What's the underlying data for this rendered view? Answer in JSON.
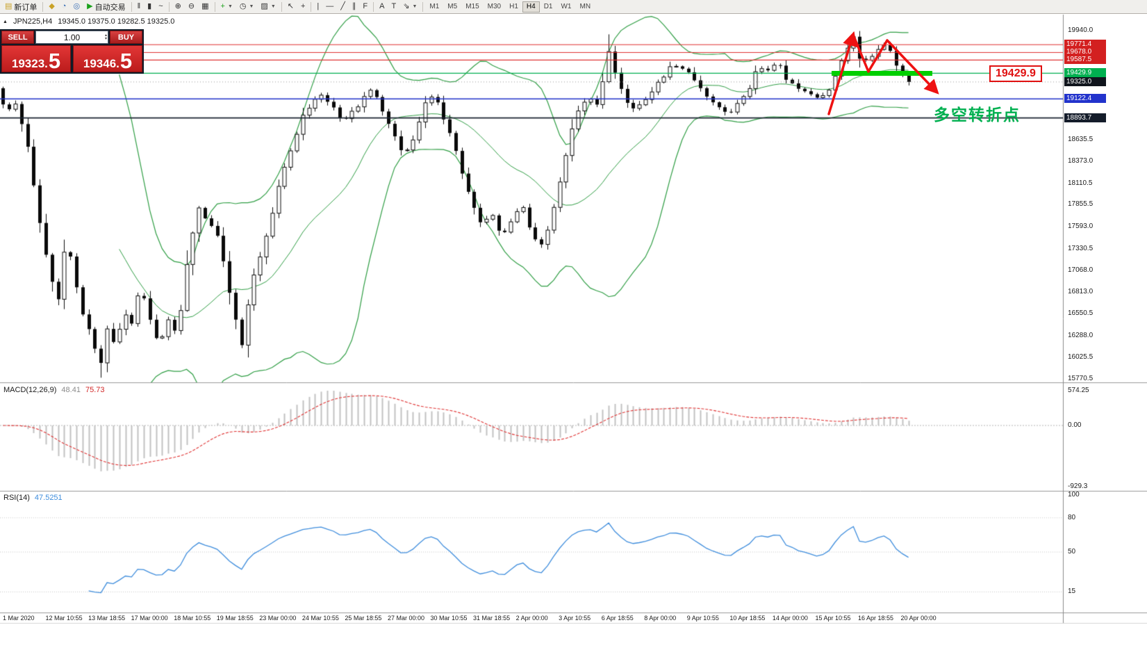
{
  "toolbar": {
    "buttons": [
      {
        "name": "new-order-button",
        "glyph": "▤",
        "color": "#c9a227",
        "label": "新订单"
      },
      {
        "sep": true
      },
      {
        "name": "styler-button",
        "glyph": "◆",
        "color": "#c9a227"
      },
      {
        "name": "market-watch-button",
        "glyph": "◔",
        "color": "#3b6fb5"
      },
      {
        "name": "strategy-tester-button",
        "glyph": "◎",
        "color": "#3b6fb5"
      },
      {
        "name": "auto-trading-button",
        "glyph": "▶",
        "color": "#1ba11b",
        "label": "自动交易"
      },
      {
        "sep": true
      },
      {
        "name": "bar-chart-button",
        "glyph": "‖"
      },
      {
        "name": "candlestick-chart-button",
        "glyph": "▮"
      },
      {
        "name": "line-chart-button",
        "glyph": "~"
      },
      {
        "sep": true
      },
      {
        "name": "zoom-in-button",
        "glyph": "⊕"
      },
      {
        "name": "zoom-out-button",
        "glyph": "⊖"
      },
      {
        "name": "tile-windows-button",
        "glyph": "▦"
      },
      {
        "sep": true
      },
      {
        "name": "add-indicator-button",
        "glyph": "+",
        "color": "#1ba11b",
        "dropdown": true
      },
      {
        "name": "periods-button",
        "glyph": "◷",
        "dropdown": true
      },
      {
        "name": "templates-button",
        "glyph": "▨",
        "dropdown": true
      },
      {
        "sep": true
      },
      {
        "name": "cursor-button",
        "glyph": "↖"
      },
      {
        "name": "crosshair-button",
        "glyph": "+"
      },
      {
        "sep": true
      },
      {
        "name": "vertical-line-button",
        "glyph": "|"
      },
      {
        "name": "horizontal-line-button",
        "glyph": "—"
      },
      {
        "name": "trendline-button",
        "glyph": "╱"
      },
      {
        "name": "channel-button",
        "glyph": "∥"
      },
      {
        "name": "fibonacci-button",
        "glyph": "F"
      },
      {
        "sep": true
      },
      {
        "name": "text-button",
        "glyph": "A"
      },
      {
        "name": "label-button",
        "glyph": "T"
      },
      {
        "name": "arrows-button",
        "glyph": "⇘",
        "dropdown": true
      },
      {
        "sep": true
      }
    ],
    "timeframes": [
      "M1",
      "M5",
      "M15",
      "M30",
      "H1",
      "H4",
      "D1",
      "W1",
      "MN"
    ],
    "active_timeframe": "H4"
  },
  "chart_header": {
    "marker": "▲",
    "symbol": "JPN225,H4",
    "values": "19345.0 19375.0 19282.5 19325.0"
  },
  "quote_panel": {
    "sell_label": "SELL",
    "buy_label": "BUY",
    "volume": "1.00",
    "sell_price_main": "19323.",
    "sell_price_big": "5",
    "buy_price_main": "19346.",
    "buy_price_big": "5"
  },
  "price_axis": {
    "plain_labels": [
      19940.0,
      18635.5,
      18373.0,
      18110.5,
      17855.5,
      17593.0,
      17330.5,
      17068.0,
      16813.0,
      16550.5,
      16288.0,
      16025.5,
      15770.5
    ],
    "tags": [
      {
        "value": 19771.4,
        "bg": "#d32020"
      },
      {
        "value": 19678.0,
        "bg": "#d32020"
      },
      {
        "value": 19587.5,
        "bg": "#d32020"
      },
      {
        "value": 19429.9,
        "bg": "#00b050"
      },
      {
        "value": 19325.0,
        "bg": "#10151d"
      },
      {
        "value": 19122.4,
        "bg": "#2233cc"
      },
      {
        "value": 18893.7,
        "bg": "#141c2a"
      }
    ]
  },
  "macd_panel": {
    "name": "MACD(12,26,9)",
    "value_main": "48.41",
    "value_signal": "75.73",
    "axis": [
      "574.25",
      "0.00",
      "-929.3"
    ]
  },
  "rsi_panel": {
    "name": "RSI(14)",
    "value": "47.5251",
    "axis": [
      100,
      80,
      50,
      15
    ],
    "levels": [
      80,
      50,
      15
    ]
  },
  "time_axis": [
    "1 Mar 2020",
    "12 Mar 10:55",
    "13 Mar 18:55",
    "17 Mar 00:00",
    "18 Mar 10:55",
    "19 Mar 18:55",
    "23 Mar 00:00",
    "24 Mar 10:55",
    "25 Mar 18:55",
    "27 Mar 00:00",
    "30 Mar 10:55",
    "31 Mar 18:55",
    "2 Apr 00:00",
    "3 Apr 10:55",
    "6 Apr 18:55",
    "8 Apr 00:00",
    "9 Apr 10:55",
    "10 Apr 18:55",
    "14 Apr 00:00",
    "15 Apr 10:55",
    "16 Apr 18:55",
    "20 Apr 00:00"
  ],
  "annotations": {
    "price_callout": "19429.9",
    "turning_point": "多空转折点"
  },
  "chart_data": {
    "type": "candlestick",
    "symbol": "JPN225",
    "timeframe": "H4",
    "header_ohlc": [
      19345.0,
      19375.0,
      19282.5,
      19325.0
    ],
    "current_price": 19325.0,
    "ylim": [
      15770.5,
      19940.0
    ],
    "hlines": [
      {
        "price": 19771.4,
        "color": "#e03131",
        "width": 1.2
      },
      {
        "price": 19678.0,
        "color": "#e03131",
        "width": 1.2
      },
      {
        "price": 19587.5,
        "color": "#e03131",
        "width": 1.2
      },
      {
        "price": 19429.9,
        "color": "#00b050",
        "width": 1.2
      },
      {
        "price": 19122.4,
        "color": "#2233cc",
        "width": 1.6
      },
      {
        "price": 18893.7,
        "color": "#1b2430",
        "width": 1.8
      }
    ],
    "support_zone": {
      "price": 19429.9,
      "x_start": 1197,
      "x_end": 1342
    },
    "bollinger": {
      "period": 20,
      "deviation": 2,
      "color": "#2f9e44"
    },
    "macd": {
      "fast": 12,
      "slow": 26,
      "signal": 9,
      "current_main": 48.41,
      "current_signal": 75.73,
      "axis_range": [
        -929.3,
        574.25
      ]
    },
    "rsi": {
      "period": 14,
      "current": 47.5251
    },
    "spikes": [
      [
        148,
        "l",
        15785
      ],
      [
        880,
        "h",
        19895
      ],
      [
        1232,
        "h",
        19920
      ]
    ],
    "price_path": [
      [
        0,
        19250
      ],
      [
        14,
        18980
      ],
      [
        28,
        19060
      ],
      [
        45,
        18520
      ],
      [
        60,
        17700
      ],
      [
        75,
        17050
      ],
      [
        88,
        16700
      ],
      [
        100,
        17500
      ],
      [
        112,
        16950
      ],
      [
        125,
        16500
      ],
      [
        138,
        16250
      ],
      [
        148,
        15900
      ],
      [
        158,
        16400
      ],
      [
        170,
        16150
      ],
      [
        182,
        16600
      ],
      [
        196,
        16400
      ],
      [
        205,
        16900
      ],
      [
        218,
        16550
      ],
      [
        232,
        16150
      ],
      [
        246,
        16500
      ],
      [
        260,
        16300
      ],
      [
        275,
        17300
      ],
      [
        290,
        17800
      ],
      [
        305,
        17650
      ],
      [
        320,
        17450
      ],
      [
        335,
        16800
      ],
      [
        352,
        16150
      ],
      [
        366,
        16900
      ],
      [
        380,
        17250
      ],
      [
        395,
        17700
      ],
      [
        410,
        18250
      ],
      [
        425,
        18550
      ],
      [
        440,
        18900
      ],
      [
        455,
        19100
      ],
      [
        468,
        19150
      ],
      [
        482,
        19050
      ],
      [
        495,
        18850
      ],
      [
        510,
        18950
      ],
      [
        525,
        19100
      ],
      [
        540,
        19250
      ],
      [
        555,
        18950
      ],
      [
        570,
        18700
      ],
      [
        585,
        18450
      ],
      [
        600,
        18650
      ],
      [
        615,
        19050
      ],
      [
        628,
        19200
      ],
      [
        642,
        18900
      ],
      [
        656,
        18650
      ],
      [
        670,
        18200
      ],
      [
        684,
        17900
      ],
      [
        698,
        17600
      ],
      [
        712,
        17780
      ],
      [
        726,
        17450
      ],
      [
        740,
        17650
      ],
      [
        754,
        17880
      ],
      [
        768,
        17550
      ],
      [
        782,
        17350
      ],
      [
        796,
        17620
      ],
      [
        810,
        18100
      ],
      [
        824,
        18650
      ],
      [
        838,
        19000
      ],
      [
        850,
        19150
      ],
      [
        862,
        19000
      ],
      [
        872,
        19350
      ],
      [
        880,
        19700
      ],
      [
        890,
        19420
      ],
      [
        902,
        19150
      ],
      [
        915,
        18980
      ],
      [
        928,
        19080
      ],
      [
        942,
        19220
      ],
      [
        956,
        19350
      ],
      [
        970,
        19520
      ],
      [
        984,
        19480
      ],
      [
        998,
        19400
      ],
      [
        1012,
        19260
      ],
      [
        1026,
        19120
      ],
      [
        1040,
        19000
      ],
      [
        1054,
        18920
      ],
      [
        1068,
        19080
      ],
      [
        1082,
        19250
      ],
      [
        1096,
        19500
      ],
      [
        1110,
        19480
      ],
      [
        1124,
        19560
      ],
      [
        1138,
        19320
      ],
      [
        1152,
        19260
      ],
      [
        1166,
        19210
      ],
      [
        1180,
        19120
      ],
      [
        1194,
        19180
      ],
      [
        1208,
        19420
      ],
      [
        1220,
        19650
      ],
      [
        1232,
        19880
      ],
      [
        1244,
        19560
      ],
      [
        1256,
        19580
      ],
      [
        1268,
        19700
      ],
      [
        1280,
        19820
      ],
      [
        1292,
        19560
      ],
      [
        1302,
        19420
      ],
      [
        1312,
        19325
      ]
    ]
  }
}
